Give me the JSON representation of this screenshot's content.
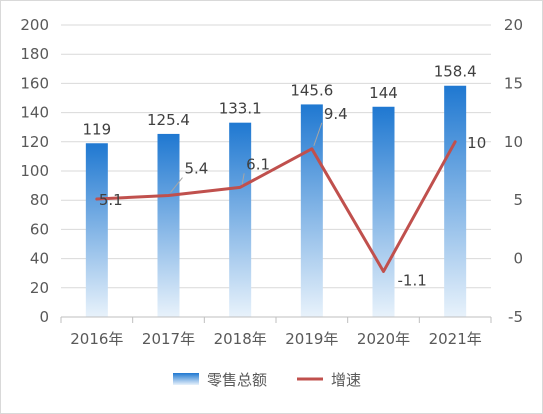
{
  "chart_data": {
    "type": "bar+line",
    "title": "",
    "categories": [
      "2016年",
      "2017年",
      "2018年",
      "2019年",
      "2020年",
      "2021年"
    ],
    "series": [
      {
        "name": "零售总额",
        "type": "bar",
        "axis": "left",
        "values": [
          119,
          125.4,
          133.1,
          145.6,
          144,
          158.4
        ],
        "value_labels": [
          "119",
          "125.4",
          "133.1",
          "145.6",
          "144",
          "158.4"
        ],
        "color_top": "#1f78d1",
        "color_bottom": "#e8f2fb"
      },
      {
        "name": "增速",
        "type": "line",
        "axis": "right",
        "values": [
          5.1,
          5.4,
          6.1,
          9.4,
          -1.1,
          10
        ],
        "value_labels": [
          "5.1",
          "5.4",
          "6.1",
          "9.4",
          "-1.1",
          "10"
        ],
        "color": "#c0504d"
      }
    ],
    "y_left": {
      "min": 0,
      "max": 200,
      "step": 20,
      "ticks": [
        "0",
        "20",
        "40",
        "60",
        "80",
        "100",
        "120",
        "140",
        "160",
        "180",
        "200"
      ]
    },
    "y_right": {
      "min": -5,
      "max": 20,
      "step": 5,
      "ticks": [
        "-5",
        "0",
        "5",
        "10",
        "15",
        "20"
      ]
    },
    "grid": true,
    "legend": "bottom"
  }
}
